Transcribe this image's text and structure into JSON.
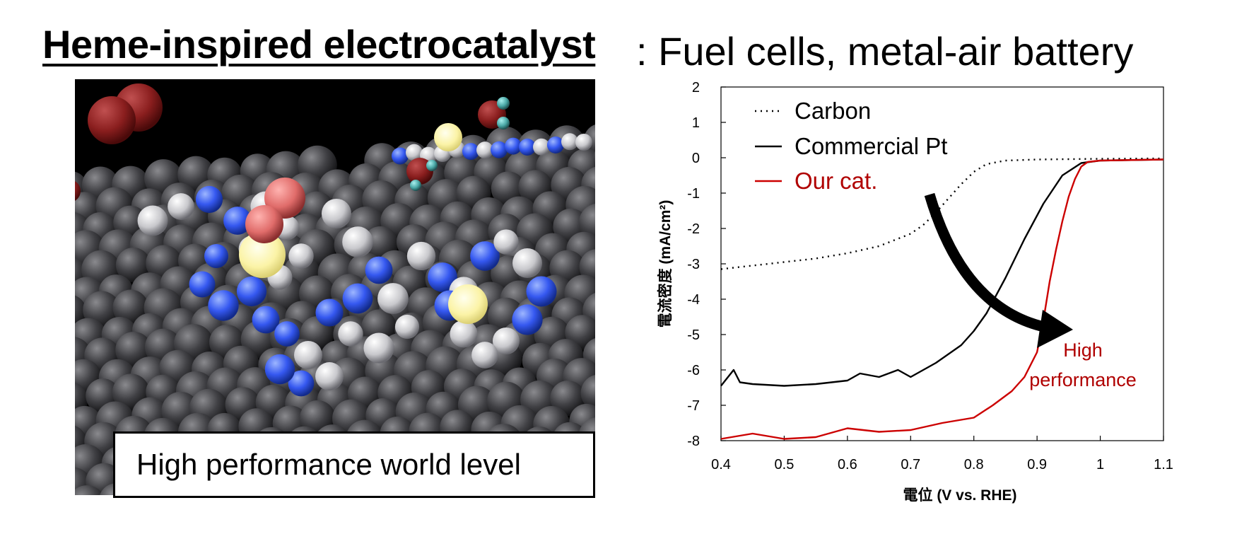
{
  "header": {
    "title": "Heme-inspired electrocatalyst",
    "subtitle": ": Fuel cells, metal-air battery"
  },
  "figure": {
    "caption": "High performance world level"
  },
  "colors": {
    "carbon": "#000000",
    "commercial_pt": "#000000",
    "our_cat": "#cc0000",
    "annotation": "#b00000"
  },
  "chart_data": {
    "type": "line",
    "xlabel": "電位 (V vs. RHE)",
    "ylabel": "電流密度 (mA/cm²)",
    "xlim": [
      0.4,
      1.1
    ],
    "ylim": [
      -8,
      2
    ],
    "xticks": [
      "0.4",
      "0.5",
      "0.6",
      "0.7",
      "0.8",
      "0.9",
      "1",
      "1.1"
    ],
    "yticks": [
      "2",
      "1",
      "0",
      "-1",
      "-2",
      "-3",
      "-4",
      "-5",
      "-6",
      "-7",
      "-8"
    ],
    "legend_position": "top-left",
    "annotation": [
      "High",
      "performance"
    ],
    "series": [
      {
        "name": "Carbon",
        "style": "dotted",
        "x": [
          0.4,
          0.45,
          0.5,
          0.55,
          0.6,
          0.65,
          0.7,
          0.72,
          0.74,
          0.76,
          0.78,
          0.8,
          0.82,
          0.85,
          0.9,
          1.0,
          1.1
        ],
        "y": [
          -3.15,
          -3.05,
          -2.95,
          -2.85,
          -2.7,
          -2.5,
          -2.15,
          -1.9,
          -1.55,
          -1.15,
          -0.75,
          -0.4,
          -0.18,
          -0.08,
          -0.05,
          -0.03,
          -0.02
        ]
      },
      {
        "name": "Commercial Pt",
        "style": "solid",
        "x": [
          0.4,
          0.42,
          0.43,
          0.45,
          0.5,
          0.55,
          0.6,
          0.62,
          0.65,
          0.68,
          0.7,
          0.74,
          0.78,
          0.8,
          0.82,
          0.85,
          0.88,
          0.91,
          0.94,
          0.97,
          1.0,
          1.1
        ],
        "y": [
          -6.45,
          -6.0,
          -6.35,
          -6.4,
          -6.45,
          -6.4,
          -6.3,
          -6.1,
          -6.2,
          -6.0,
          -6.2,
          -5.8,
          -5.3,
          -4.9,
          -4.4,
          -3.4,
          -2.3,
          -1.3,
          -0.5,
          -0.15,
          -0.08,
          -0.05
        ]
      },
      {
        "name": "Our cat.",
        "style": "solid",
        "x": [
          0.4,
          0.45,
          0.5,
          0.55,
          0.6,
          0.65,
          0.7,
          0.75,
          0.8,
          0.83,
          0.86,
          0.88,
          0.9,
          0.91,
          0.92,
          0.93,
          0.94,
          0.95,
          0.96,
          0.97,
          0.98,
          1.0,
          1.1
        ],
        "y": [
          -7.95,
          -7.8,
          -7.95,
          -7.9,
          -7.65,
          -7.75,
          -7.7,
          -7.5,
          -7.35,
          -7.0,
          -6.6,
          -6.2,
          -5.5,
          -4.6,
          -3.5,
          -2.6,
          -1.8,
          -1.1,
          -0.6,
          -0.25,
          -0.12,
          -0.08,
          -0.05
        ]
      }
    ]
  }
}
